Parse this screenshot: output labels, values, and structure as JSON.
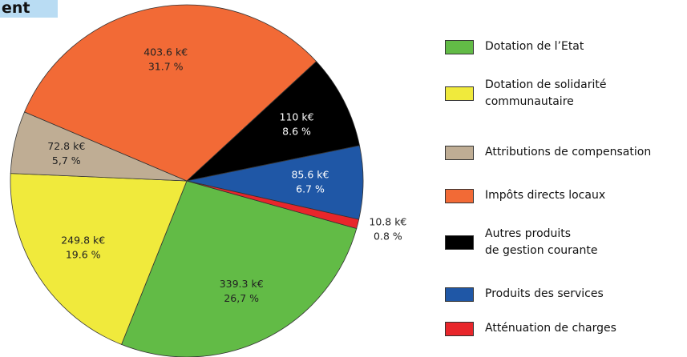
{
  "chart_data": {
    "type": "pie",
    "title": "ent",
    "categories": [
      "Dotation de l’Etat",
      "Dotation de solidarité\ncommunautaire",
      "Attributions de compensation",
      "Impôts directs locaux",
      "Autres produits\nde gestion courante",
      "Produits des services",
      "Atténuation de charges"
    ],
    "values": [
      339.3,
      249.8,
      72.8,
      403.6,
      110,
      85.6,
      10.8
    ],
    "value_labels": [
      "339.3 k€",
      "249.8 k€",
      "72.8 k€",
      "403.6 k€",
      "110 k€",
      "85.6 k€",
      "10.8 k€"
    ],
    "percents": [
      26.7,
      19.6,
      5.7,
      31.7,
      8.6,
      6.7,
      0.8
    ],
    "percent_labels": [
      "26,7 %",
      "19.6 %",
      "5,7 %",
      "31.7 %",
      "8.6 %",
      "6.7 %",
      "0.8 %"
    ],
    "colors": [
      "#62bb46",
      "#f0ea3c",
      "#bfad94",
      "#f26a36",
      "#000000",
      "#1f57a6",
      "#e8262b"
    ]
  }
}
